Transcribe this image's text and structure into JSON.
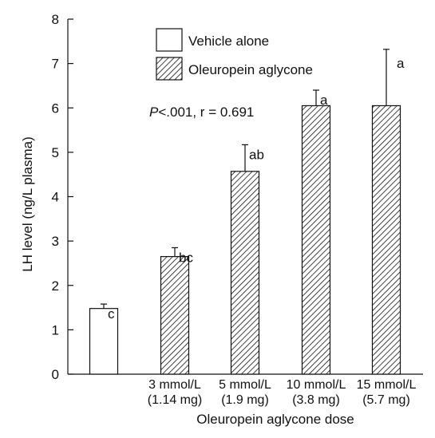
{
  "chart_data": {
    "type": "bar",
    "title": "",
    "xlabel": "Oleuropein aglycone dose",
    "ylabel": "LH level (ng/L plasma)",
    "ylim": [
      0,
      8
    ],
    "yticks": [
      "0",
      "1",
      "2",
      "3",
      "4",
      "5",
      "6",
      "7",
      "8"
    ],
    "grid": false,
    "legend_position": "top-center",
    "categories": [
      {
        "line1": "",
        "line2": ""
      },
      {
        "line1": "3 mmol/L",
        "line2": "(1.14 mg)"
      },
      {
        "line1": "5 mmol/L",
        "line2": "(1.9 mg)"
      },
      {
        "line1": "10 mmol/L",
        "line2": "(3.8 mg)"
      },
      {
        "line1": "15 mmol/L",
        "line2": "(5.7 mg)"
      }
    ],
    "series": [
      {
        "name": "Vehicle alone",
        "style": "open",
        "values": [
          1.48,
          null,
          null,
          null,
          null
        ],
        "errors": [
          0.1,
          null,
          null,
          null,
          null
        ]
      },
      {
        "name": "Oleuropein aglycone",
        "style": "hatched",
        "values": [
          null,
          2.65,
          4.57,
          6.05,
          6.05
        ],
        "errors": [
          null,
          0.2,
          0.6,
          0.35,
          1.27
        ]
      }
    ],
    "bar_labels": [
      "c",
      "bc",
      "ab",
      "a",
      "a"
    ],
    "stats_prefix": "P",
    "stats_text": "<.001,  r = 0.691",
    "colors": {
      "axis": "#111111",
      "bar_fill": "#ffffff",
      "hatch": "#111111"
    }
  }
}
